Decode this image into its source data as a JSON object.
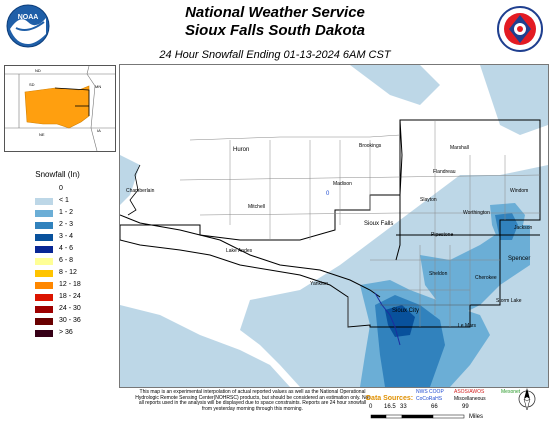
{
  "header": {
    "line1": "National Weather Service",
    "line2": "Sioux Falls South Dakota",
    "line3": "24 Hour Snowfall Ending 01-13-2024 6AM CST"
  },
  "logos": {
    "left": "NOAA",
    "right": "NATIONAL WEATHER SERVICE"
  },
  "inset": {
    "state_labels": [
      "ND",
      "MN",
      "SD",
      "IA",
      "NE"
    ]
  },
  "legend": {
    "title": "Snowfall (In)",
    "items": [
      {
        "label": "0",
        "color": "#ffffff"
      },
      {
        "label": "< 1",
        "color": "#bdd7e7"
      },
      {
        "label": "1 - 2",
        "color": "#6baed6"
      },
      {
        "label": "2 - 3",
        "color": "#3182bd"
      },
      {
        "label": "3 - 4",
        "color": "#08519c"
      },
      {
        "label": "4 - 6",
        "color": "#082694"
      },
      {
        "label": "6 - 8",
        "color": "#ffff96"
      },
      {
        "label": "8 - 12",
        "color": "#ffc400"
      },
      {
        "label": "12 - 18",
        "color": "#ff8700"
      },
      {
        "label": "18 - 24",
        "color": "#db1400"
      },
      {
        "label": "24 - 30",
        "color": "#9e0000"
      },
      {
        "label": "30 - 36",
        "color": "#690000"
      },
      {
        "label": "> 36",
        "color": "#360016"
      }
    ]
  },
  "map": {
    "cities": [
      {
        "name": "Huron",
        "big": true
      },
      {
        "name": "Brookings",
        "big": false
      },
      {
        "name": "Marshall",
        "big": false
      },
      {
        "name": "Chamberlain",
        "big": false
      },
      {
        "name": "Mitchell",
        "big": false
      },
      {
        "name": "Madison",
        "big": false
      },
      {
        "name": "Windom",
        "big": false
      },
      {
        "name": "Sioux Falls",
        "big": true
      },
      {
        "name": "Worthington",
        "big": false
      },
      {
        "name": "Spencer",
        "big": true
      },
      {
        "name": "Storm Lake",
        "big": false
      },
      {
        "name": "Sioux City",
        "big": true
      },
      {
        "name": "Yankton",
        "big": false
      },
      {
        "name": "Le Mars",
        "big": false
      },
      {
        "name": "Pipestone",
        "big": false
      },
      {
        "name": "Slayton",
        "big": false
      },
      {
        "name": "Lake Andes",
        "big": false
      },
      {
        "name": "Flandreau",
        "big": false
      },
      {
        "name": "Jackson",
        "big": false
      },
      {
        "name": "Sheldon",
        "big": false
      },
      {
        "name": "Cherokee",
        "big": false
      }
    ],
    "point_value": "0"
  },
  "footer": {
    "disclaimer": "This map is an experimental interpolation of actual reported values as well as the National Operational Hydrologic Remote Sensing Center(NOHRSC) products, but should be considered an estimation only. Not all reports used in the analysis will be displayed due to space constraints. Reports are 24 hour snowfall from yesterday morning through this morning.",
    "data_sources_label": "Data Sources:",
    "sources": [
      {
        "name": "NWS COOP",
        "color": "#1f4bd1"
      },
      {
        "name": "ASOS/AWOS",
        "color": "#d21e1e"
      },
      {
        "name": "Mesonet",
        "color": "#2a9a2a"
      },
      {
        "name": "CoCoRaHS",
        "color": "#1f4bd1"
      },
      {
        "name": "Miscellaneous",
        "color": "#000000"
      }
    ],
    "scale": {
      "ticks": [
        "0",
        "16.5",
        "33",
        "66",
        "99"
      ],
      "unit": "Miles"
    }
  }
}
